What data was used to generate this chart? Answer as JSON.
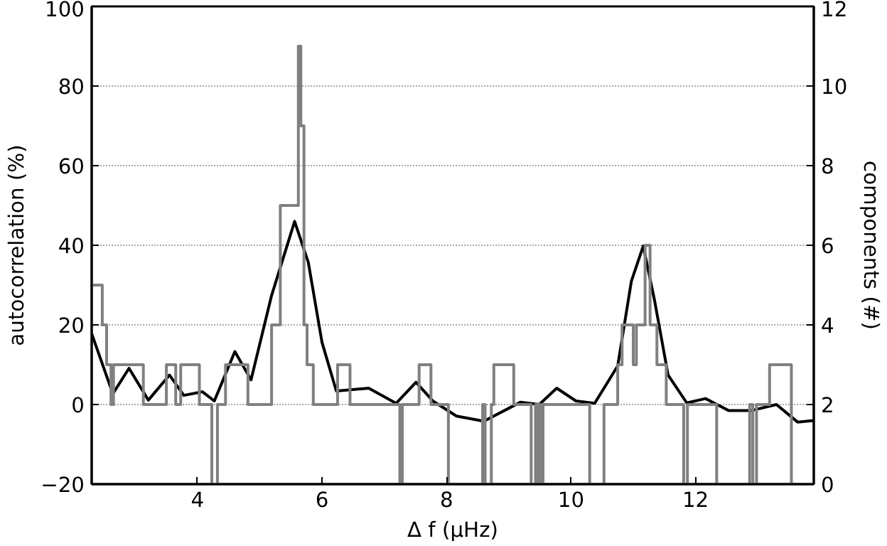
{
  "chart_data": {
    "type": "line",
    "xlabel": "Δ f (μHz)",
    "ylabel": "autocorrelation (%)",
    "y2label": "components (#)",
    "xlim": [
      2.3,
      13.9
    ],
    "xticks": [
      4,
      6,
      8,
      10,
      12
    ],
    "ylim": [
      -20,
      100
    ],
    "yticks": [
      -20,
      0,
      20,
      40,
      60,
      80,
      100
    ],
    "y2lim": [
      0,
      12
    ],
    "y2ticks": [
      0,
      2,
      4,
      6,
      8,
      10,
      12
    ],
    "grid": "y",
    "line_style": "solid",
    "series": [
      {
        "color": "#000000",
        "x": [
          2.3,
          2.64,
          2.9,
          3.21,
          3.55,
          3.78,
          4.08,
          4.27,
          4.6,
          4.86,
          5.19,
          5.56,
          5.78,
          6.0,
          6.23,
          6.75,
          7.19,
          7.51,
          7.78,
          8.16,
          8.6,
          9.19,
          9.49,
          9.77,
          10.08,
          10.38,
          10.75,
          10.97,
          11.16,
          11.34,
          11.56,
          11.86,
          12.16,
          12.53,
          12.9,
          13.3,
          13.64,
          13.9
        ],
        "values": [
          17.8,
          2.7,
          9.1,
          1.1,
          7.4,
          2.3,
          3.2,
          0.9,
          13.3,
          6.2,
          27.4,
          46,
          35.7,
          15.6,
          3.4,
          4.1,
          0.3,
          5.6,
          0.9,
          -2.9,
          -4.2,
          0.6,
          0,
          4.1,
          0.9,
          0.3,
          9.7,
          31,
          39.8,
          26.3,
          7.4,
          0.4,
          1.5,
          -1.5,
          -1.5,
          0,
          -4.4,
          -4
        ]
      },
      {
        "type": "step",
        "axis": "y2",
        "color": "#808080",
        "x": [
          2.3,
          2.47,
          2.54,
          2.61,
          2.65,
          3.13,
          3.5,
          3.65,
          3.73,
          4.03,
          4.23,
          4.32,
          4.45,
          4.81,
          5.19,
          5.33,
          5.62,
          5.66,
          5.71,
          5.76,
          5.86,
          6.25,
          6.45,
          7.25,
          7.29,
          7.56,
          7.75,
          8.03,
          8.58,
          8.62,
          8.72,
          8.76,
          9.08,
          9.36,
          9.43,
          9.46,
          9.49,
          9.52,
          9.55,
          10.3,
          10.53,
          10.75,
          10.82,
          11.0,
          11.05,
          11.19,
          11.27,
          11.38,
          11.53,
          11.81,
          11.87,
          12.34,
          12.87,
          12.92,
          12.98,
          13.06,
          13.19,
          13.54,
          13.9
        ],
        "values": [
          5,
          4,
          3,
          2,
          3,
          2,
          3,
          2,
          3,
          2,
          0,
          2,
          3,
          2,
          4,
          7,
          11,
          9,
          4,
          3,
          2,
          3,
          2,
          0,
          2,
          3,
          2,
          0,
          2,
          0,
          2,
          3,
          2,
          0,
          2,
          0,
          2,
          0,
          2,
          0,
          2,
          3,
          4,
          3,
          4,
          6,
          4,
          3,
          2,
          0,
          2,
          0,
          2,
          0,
          2,
          2,
          3,
          0,
          0
        ]
      }
    ]
  }
}
